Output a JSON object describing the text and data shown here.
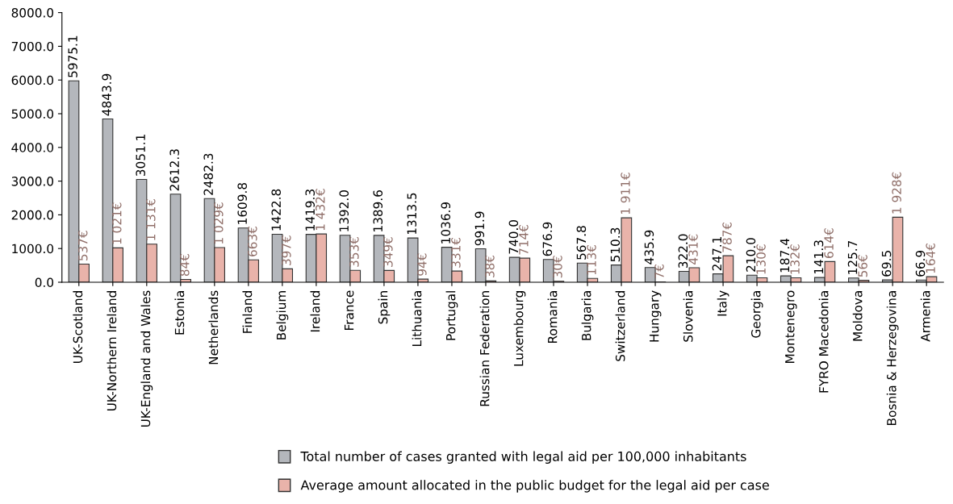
{
  "chart_data": {
    "type": "bar",
    "categories": [
      "UK-Scotland",
      "UK-Northern Ireland",
      "UK-England and Wales",
      "Estonia",
      "Netherlands",
      "Finland",
      "Belgium",
      "Ireland",
      "France",
      "Spain",
      "Lithuania",
      "Portugal",
      "Russian Federation",
      "Luxembourg",
      "Romania",
      "Bulgaria",
      "Switzerland",
      "Hungary",
      "Slovenia",
      "Italy",
      "Georgia",
      "Montenegro",
      "FYRO Macedonia",
      "Moldova",
      "Bosnia & Herzegovina",
      "Armenia"
    ],
    "series": [
      {
        "name": "Total number of cases granted with legal aid per 100,000 inhabitants",
        "color": "#b4b7bc",
        "values": [
          5975.1,
          4843.9,
          3051.1,
          2612.3,
          2482.3,
          1609.8,
          1422.8,
          1419.3,
          1392.0,
          1389.6,
          1313.5,
          1036.9,
          991.9,
          740.0,
          676.9,
          567.8,
          510.3,
          435.9,
          322.0,
          247.1,
          210.0,
          187.4,
          141.3,
          125.7,
          69.5,
          66.9
        ],
        "value_labels": [
          "5975.1",
          "4843.9",
          "3051.1",
          "2612.3",
          "2482.3",
          "1609.8",
          "1422.8",
          "1419.3",
          "1392.0",
          "1389.6",
          "1313.5",
          "1036.9",
          "991.9",
          "740.0",
          "676.9",
          "567.8",
          "510.3",
          "435.9",
          "322.0",
          "247.1",
          "210.0",
          "187.4",
          "141.3",
          "125.7",
          "69.5",
          "66.9"
        ]
      },
      {
        "name": "Average amount allocated in the public budget for the legal aid per case",
        "color": "#e9b3aa",
        "values": [
          537,
          1021,
          1131,
          84,
          1029,
          663,
          397,
          1432,
          353,
          349,
          94,
          331,
          38,
          714,
          30,
          113,
          1911,
          7,
          431,
          787,
          130,
          132,
          614,
          56,
          1928,
          164
        ],
        "value_labels": [
          "537€",
          "1 021€",
          "1 131€",
          "84€",
          "1 029€",
          "663€",
          "397€",
          "1 432€",
          "353€",
          "349€",
          "94€",
          "331€",
          "38€",
          "714€",
          "30€",
          "113€",
          "1 911€",
          "7€",
          "431€",
          "787€",
          "130€",
          "132€",
          "614€",
          "56€",
          "1 928€",
          "164€"
        ]
      }
    ],
    "ylim": [
      0,
      8000
    ],
    "yticks": [
      {
        "value": 0,
        "label": "0.0"
      },
      {
        "value": 1000,
        "label": "1000.0"
      },
      {
        "value": 2000,
        "label": "2000.0"
      },
      {
        "value": 3000,
        "label": "3000.0"
      },
      {
        "value": 4000,
        "label": "4000.0"
      },
      {
        "value": 5000,
        "label": "5000.0"
      },
      {
        "value": 6000,
        "label": "6000.0"
      },
      {
        "value": 7000,
        "label": "7000.0"
      },
      {
        "value": 8000,
        "label": "8000.0"
      }
    ],
    "grid": false,
    "legend": "bottom"
  }
}
